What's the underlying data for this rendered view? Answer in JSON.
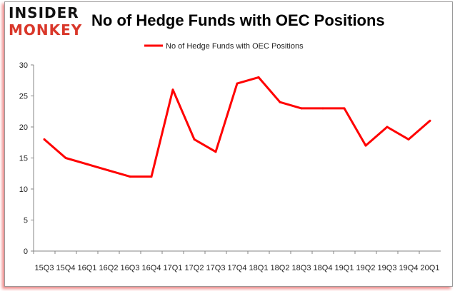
{
  "logo": {
    "line1": "INSIDER",
    "line2": "MONKEY"
  },
  "colors": {
    "series": "#ff0000",
    "logo_top": "#111111",
    "logo_bottom": "#d9372a",
    "axis": "#868686"
  },
  "chart_data": {
    "type": "line",
    "title": "No of Hedge Funds with OEC Positions",
    "categories": [
      "15Q3",
      "15Q4",
      "16Q1",
      "16Q2",
      "16Q3",
      "16Q4",
      "17Q1",
      "17Q2",
      "17Q3",
      "17Q4",
      "18Q1",
      "18Q2",
      "18Q3",
      "18Q4",
      "19Q1",
      "19Q2",
      "19Q3",
      "19Q4",
      "20Q1"
    ],
    "series": [
      {
        "name": "No of Hedge Funds with OEC Positions",
        "values": [
          18,
          15,
          14,
          13,
          12,
          12,
          26,
          18,
          16,
          27,
          28,
          24,
          23,
          23,
          23,
          17,
          20,
          18,
          21
        ]
      }
    ],
    "yticks": [
      0,
      5,
      10,
      15,
      20,
      25,
      30
    ],
    "ylim": [
      0,
      30
    ],
    "grid": false,
    "legend": "top"
  }
}
